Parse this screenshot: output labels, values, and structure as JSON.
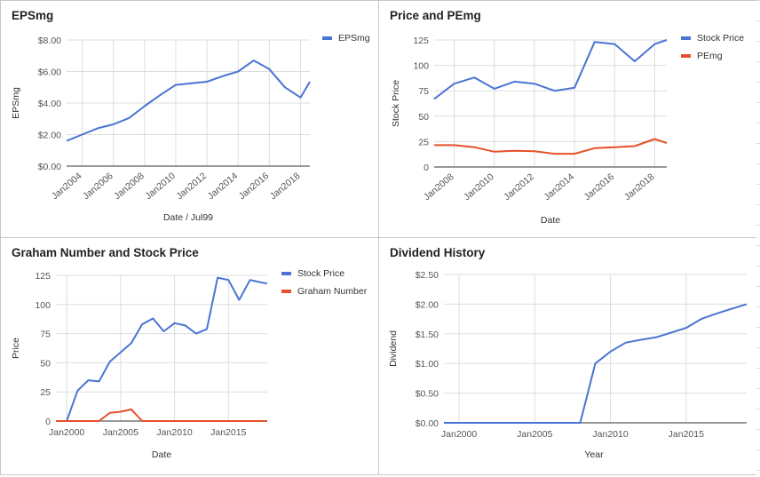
{
  "colors": {
    "blue": "#4a74d4",
    "red": "#e5502b",
    "grid": "#dddddd",
    "axis": "#333333",
    "text": "#555555"
  },
  "chart_data": [
    {
      "type": "line",
      "title": "EPSmg",
      "xlabel": "Date / Jul99",
      "ylabel": "EPSmg",
      "x_type": "date",
      "xlim": [
        2003.0,
        2018.6
      ],
      "ylim": [
        0,
        8
      ],
      "x_ticks": [
        2004,
        2006,
        2008,
        2010,
        2012,
        2014,
        2016,
        2018
      ],
      "x_tick_labels": [
        "Jan2004",
        "Jan2006",
        "Jan2008",
        "Jan2010",
        "Jan2012",
        "Jan2014",
        "Jan2016",
        "Jan2018"
      ],
      "y_ticks": [
        0,
        2,
        4,
        6,
        8
      ],
      "y_tick_labels": [
        "$0.00",
        "$2.00",
        "$4.00",
        "$6.00",
        "$8.00"
      ],
      "legend_position": "top-right",
      "x_tick_rotation": "angled",
      "series": [
        {
          "name": "EPSmg",
          "color": "#4a74d4",
          "x": [
            2003.0,
            2004.0,
            2005.0,
            2006.0,
            2007.0,
            2008.0,
            2009.0,
            2010.0,
            2011.0,
            2012.0,
            2013.0,
            2014.0,
            2015.0,
            2016.0,
            2017.0,
            2018.0,
            2018.6
          ],
          "y": [
            1.6,
            2.0,
            2.4,
            2.65,
            3.05,
            3.8,
            4.5,
            5.15,
            5.25,
            5.35,
            5.7,
            6.0,
            6.7,
            6.15,
            5.0,
            4.35,
            5.35
          ]
        }
      ]
    },
    {
      "type": "line",
      "title": "Price and PEmg",
      "xlabel": "Date",
      "ylabel": "Stock Price",
      "x_type": "date",
      "xlim": [
        2007.0,
        2018.6
      ],
      "ylim": [
        0,
        125
      ],
      "x_ticks": [
        2008,
        2010,
        2012,
        2014,
        2016,
        2018
      ],
      "x_tick_labels": [
        "Jan2008",
        "Jan2010",
        "Jan2012",
        "Jan2014",
        "Jan2016",
        "Jan2018"
      ],
      "y_ticks": [
        0,
        25,
        50,
        75,
        100,
        125
      ],
      "y_tick_labels": [
        "0",
        "25",
        "50",
        "75",
        "100",
        "125"
      ],
      "legend_position": "top-right",
      "x_tick_rotation": "angled",
      "series": [
        {
          "name": "Stock Price",
          "color": "#4a74d4",
          "x": [
            2007.0,
            2008.0,
            2009.0,
            2010.0,
            2011.0,
            2012.0,
            2013.0,
            2014.0,
            2015.0,
            2016.0,
            2017.0,
            2018.0,
            2018.6
          ],
          "y": [
            67,
            82,
            88,
            77,
            84,
            82,
            75,
            78,
            123,
            121,
            104,
            121,
            125
          ]
        },
        {
          "name": "PEmg",
          "color": "#e5502b",
          "x": [
            2007.0,
            2008.0,
            2009.0,
            2010.0,
            2011.0,
            2012.0,
            2013.0,
            2014.0,
            2015.0,
            2016.0,
            2017.0,
            2018.0,
            2018.6
          ],
          "y": [
            21.5,
            21.5,
            19.5,
            15,
            16,
            15.5,
            13,
            13,
            18.5,
            19.5,
            20.5,
            27.5,
            23.5
          ]
        }
      ]
    },
    {
      "type": "line",
      "title": "Graham Number and Stock Price",
      "xlabel": "Date",
      "ylabel": "Price",
      "x_type": "date",
      "xlim": [
        1999.0,
        2018.6
      ],
      "ylim": [
        0,
        125
      ],
      "x_ticks": [
        2000,
        2005,
        2010,
        2015
      ],
      "x_tick_labels": [
        "Jan2000",
        "Jan2005",
        "Jan2010",
        "Jan2015"
      ],
      "y_ticks": [
        0,
        25,
        50,
        75,
        100,
        125
      ],
      "y_tick_labels": [
        "0",
        "25",
        "50",
        "75",
        "100",
        "125"
      ],
      "legend_position": "top-right",
      "x_tick_rotation": "none",
      "series": [
        {
          "name": "Stock Price",
          "color": "#4a74d4",
          "x": [
            1999.0,
            2000.0,
            2001.0,
            2002.0,
            2003.0,
            2004.0,
            2005.0,
            2006.0,
            2007.0,
            2008.0,
            2009.0,
            2010.0,
            2011.0,
            2012.0,
            2013.0,
            2014.0,
            2015.0,
            2016.0,
            2017.0,
            2018.0,
            2018.6
          ],
          "y": [
            0,
            0,
            26,
            35,
            34,
            51,
            59,
            67,
            83,
            88,
            77,
            84,
            82,
            75,
            79,
            123,
            121,
            104,
            121,
            119,
            118
          ]
        },
        {
          "name": "Graham Number",
          "color": "#e5502b",
          "x": [
            1999.0,
            2000.0,
            2001.0,
            2002.0,
            2003.0,
            2004.0,
            2005.0,
            2006.0,
            2007.0,
            2008.0,
            2010.0,
            2012.0,
            2014.0,
            2016.0,
            2018.6
          ],
          "y": [
            0,
            0,
            0,
            0,
            0,
            7,
            8,
            10,
            0,
            0,
            0,
            0,
            0,
            0,
            0
          ]
        }
      ]
    },
    {
      "type": "line",
      "title": "Dividend History",
      "xlabel": "Year",
      "ylabel": "Dividend",
      "x_type": "date",
      "xlim": [
        1999.0,
        2019.0
      ],
      "ylim": [
        0,
        2.5
      ],
      "x_ticks": [
        2000,
        2005,
        2010,
        2015
      ],
      "x_tick_labels": [
        "Jan2000",
        "Jan2005",
        "Jan2010",
        "Jan2015"
      ],
      "y_ticks": [
        0,
        0.5,
        1.0,
        1.5,
        2.0,
        2.5
      ],
      "y_tick_labels": [
        "$0.00",
        "$0.50",
        "$1.00",
        "$1.50",
        "$2.00",
        "$2.50"
      ],
      "legend_position": "none",
      "x_tick_rotation": "none",
      "series": [
        {
          "name": "",
          "color": "#4a74d4",
          "x": [
            1999.0,
            2000.0,
            2002.0,
            2004.0,
            2006.0,
            2008.0,
            2009.0,
            2010.0,
            2011.0,
            2012.0,
            2013.0,
            2014.0,
            2015.0,
            2016.0,
            2017.0,
            2018.0,
            2019.0
          ],
          "y": [
            0,
            0,
            0,
            0,
            0,
            0,
            1.0,
            1.2,
            1.35,
            1.4,
            1.44,
            1.52,
            1.6,
            1.75,
            1.84,
            1.92,
            2.0
          ]
        }
      ]
    }
  ]
}
